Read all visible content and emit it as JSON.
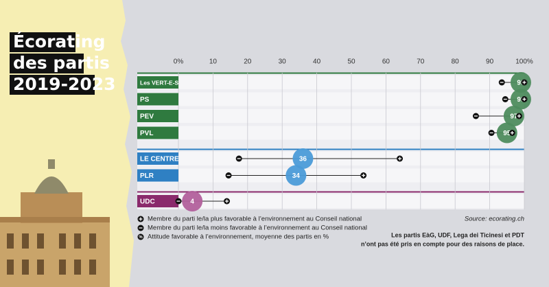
{
  "chart_data": {
    "type": "range-dot",
    "title_lines": [
      "Écorating",
      "des partis",
      "2019-2023"
    ],
    "categories": [
      "Les VERT-E-S",
      "PS",
      "PEV",
      "PVL",
      "LE CENTRE",
      "PLR",
      "UDC"
    ],
    "colors": [
      "#2f7a3f",
      "#2f7a3f",
      "#2f7a3f",
      "#2f7a3f",
      "#2f80c3",
      "#2f80c3",
      "#8a2a6c"
    ],
    "bubble_colors": [
      "#4e8c5e",
      "#4e8c5e",
      "#4e8c5e",
      "#4e8c5e",
      "#4b9bd8",
      "#4b9bd8",
      "#b2609c"
    ],
    "series": [
      {
        "name": "Membre du parti le/la plus favorable à l’environnement au Conseil national",
        "role": "max",
        "values": [
          100,
          100,
          98.5,
          96.5,
          64,
          53.5,
          14
        ]
      },
      {
        "name": "Membre du parti le/la moins favorable à l’environnement au Conseil national",
        "role": "min",
        "values": [
          93.5,
          94.5,
          86,
          90.5,
          17.5,
          14.5,
          0
        ]
      },
      {
        "name": "Attitude favorable à l’environnement, moyenne des partis en %",
        "role": "avg",
        "values": [
          99,
          99,
          97,
          95,
          36,
          34,
          4
        ]
      }
    ],
    "xlim": [
      0,
      100
    ],
    "xticks": [
      {
        "value": 0,
        "label": "0%"
      },
      10,
      20,
      30,
      40,
      50,
      60,
      70,
      80,
      90,
      {
        "value": 100,
        "label": "100%"
      }
    ],
    "grid": true,
    "source": "Source: ecorating.ch",
    "note_lines": [
      "Les partis EàG, UDF, Lega dei Ticinesi et PDT",
      "n’ont pas été pris en compte pour des raisons de place."
    ]
  }
}
